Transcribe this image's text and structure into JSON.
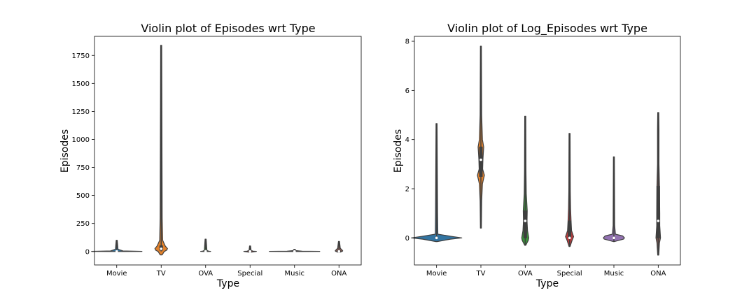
{
  "chart_data": [
    {
      "type": "violin",
      "title": "Violin plot of Episodes wrt Type",
      "xlabel": "Type",
      "ylabel": "Episodes",
      "categories": [
        "Movie",
        "TV",
        "OVA",
        "Special",
        "Music",
        "ONA"
      ],
      "ylim": [
        -120,
        1920
      ],
      "yticks": [
        0,
        250,
        500,
        750,
        1000,
        1250,
        1500,
        1750
      ],
      "grid": false,
      "violins": [
        {
          "category": "Movie",
          "min": 1,
          "max": 100,
          "q1": 1,
          "median": 1,
          "q3": 1,
          "color": "#3274a1",
          "profile": [
            [
              0,
              0.2
            ],
            [
              1,
              1.0
            ],
            [
              5,
              0.25
            ],
            [
              20,
              0.05
            ],
            [
              100,
              0.02
            ]
          ]
        },
        {
          "category": "TV",
          "min": 1,
          "max": 1840,
          "q1": 12,
          "median": 24,
          "q3": 51,
          "color": "#e1812c",
          "profile": [
            [
              -30,
              0.04
            ],
            [
              0,
              0.12
            ],
            [
              12,
              0.22
            ],
            [
              26,
              0.25
            ],
            [
              50,
              0.16
            ],
            [
              100,
              0.06
            ],
            [
              300,
              0.04
            ],
            [
              1840,
              0.02
            ]
          ]
        },
        {
          "category": "OVA",
          "min": 1,
          "max": 110,
          "q1": 1,
          "median": 2,
          "q3": 3,
          "color": "#3a923a",
          "profile": [
            [
              0,
              0.08
            ],
            [
              1,
              0.2
            ],
            [
              3,
              0.12
            ],
            [
              10,
              0.05
            ],
            [
              110,
              0.02
            ]
          ]
        },
        {
          "category": "Special",
          "min": 1,
          "max": 50,
          "q1": 1,
          "median": 1,
          "q3": 2,
          "color": "#c03d3e",
          "profile": [
            [
              -5,
              0.06
            ],
            [
              1,
              0.25
            ],
            [
              3,
              0.12
            ],
            [
              10,
              0.04
            ],
            [
              50,
              0.02
            ]
          ]
        },
        {
          "category": "Music",
          "min": 1,
          "max": 20,
          "q1": 1,
          "median": 1,
          "q3": 1,
          "color": "#9372b2",
          "profile": [
            [
              0,
              0.3
            ],
            [
              1,
              1.0
            ],
            [
              3,
              0.3
            ],
            [
              8,
              0.06
            ],
            [
              20,
              0.02
            ]
          ]
        },
        {
          "category": "ONA",
          "min": 1,
          "max": 90,
          "q1": 1,
          "median": 2,
          "q3": 8,
          "color": "#845b53",
          "profile": [
            [
              -5,
              0.06
            ],
            [
              1,
              0.13
            ],
            [
              6,
              0.15
            ],
            [
              14,
              0.12
            ],
            [
              30,
              0.05
            ],
            [
              90,
              0.02
            ]
          ]
        }
      ]
    },
    {
      "type": "violin",
      "title": "Violin plot of Log_Episodes wrt Type",
      "xlabel": "Type",
      "ylabel": "Episodes",
      "categories": [
        "Movie",
        "TV",
        "OVA",
        "Special",
        "Music",
        "ONA"
      ],
      "ylim": [
        -1.1,
        8.2
      ],
      "yticks": [
        0,
        2,
        4,
        6,
        8
      ],
      "grid": false,
      "violins": [
        {
          "category": "Movie",
          "min": 0,
          "max": 4.65,
          "q1": 0,
          "median": 0,
          "q3": 0,
          "color": "#3274a1",
          "profile": [
            [
              -0.15,
              0.02
            ],
            [
              -0.05,
              0.55
            ],
            [
              0,
              1.0
            ],
            [
              0.06,
              0.6
            ],
            [
              0.15,
              0.05
            ],
            [
              1.0,
              0.04
            ],
            [
              4.65,
              0.02
            ]
          ]
        },
        {
          "category": "TV",
          "min": 0.4,
          "max": 7.8,
          "q1": 2.5,
          "median": 3.18,
          "q3": 3.7,
          "color": "#e1812c",
          "profile": [
            [
              0.4,
              0.02
            ],
            [
              1.5,
              0.03
            ],
            [
              2.2,
              0.06
            ],
            [
              2.55,
              0.14
            ],
            [
              2.8,
              0.07
            ],
            [
              3.2,
              0.08
            ],
            [
              3.7,
              0.11
            ],
            [
              4.0,
              0.06
            ],
            [
              5.0,
              0.03
            ],
            [
              7.8,
              0.02
            ]
          ]
        },
        {
          "category": "OVA",
          "min": -0.3,
          "max": 4.95,
          "q1": 0,
          "median": 0.69,
          "q3": 1.1,
          "color": "#3a923a",
          "profile": [
            [
              -0.3,
              0.02
            ],
            [
              -0.1,
              0.12
            ],
            [
              0,
              0.14
            ],
            [
              0.3,
              0.09
            ],
            [
              0.69,
              0.07
            ],
            [
              1.1,
              0.08
            ],
            [
              1.8,
              0.04
            ],
            [
              2.7,
              0.03
            ],
            [
              4.95,
              0.02
            ]
          ]
        },
        {
          "category": "Special",
          "min": -0.35,
          "max": 4.25,
          "q1": 0,
          "median": 0,
          "q3": 0.69,
          "color": "#c03d3e",
          "profile": [
            [
              -0.35,
              0.02
            ],
            [
              -0.1,
              0.1
            ],
            [
              0.05,
              0.16
            ],
            [
              0.3,
              0.08
            ],
            [
              0.7,
              0.06
            ],
            [
              1.2,
              0.04
            ],
            [
              1.9,
              0.03
            ],
            [
              4.25,
              0.02
            ]
          ]
        },
        {
          "category": "Music",
          "min": -0.15,
          "max": 3.3,
          "q1": 0,
          "median": 0,
          "q3": 0,
          "color": "#9372b2",
          "profile": [
            [
              -0.15,
              0.02
            ],
            [
              -0.05,
              0.38
            ],
            [
              0,
              0.42
            ],
            [
              0.08,
              0.35
            ],
            [
              0.15,
              0.06
            ],
            [
              0.5,
              0.03
            ],
            [
              3.3,
              0.02
            ]
          ]
        },
        {
          "category": "ONA",
          "min": -0.7,
          "max": 5.1,
          "q1": 0,
          "median": 0.69,
          "q3": 2.1,
          "color": "#845b53",
          "profile": [
            [
              -0.7,
              0.02
            ],
            [
              -0.2,
              0.05
            ],
            [
              0,
              0.09
            ],
            [
              0.5,
              0.06
            ],
            [
              1.0,
              0.06
            ],
            [
              2.1,
              0.05
            ],
            [
              3.0,
              0.03
            ],
            [
              4.4,
              0.03
            ],
            [
              5.1,
              0.02
            ]
          ]
        }
      ]
    }
  ]
}
